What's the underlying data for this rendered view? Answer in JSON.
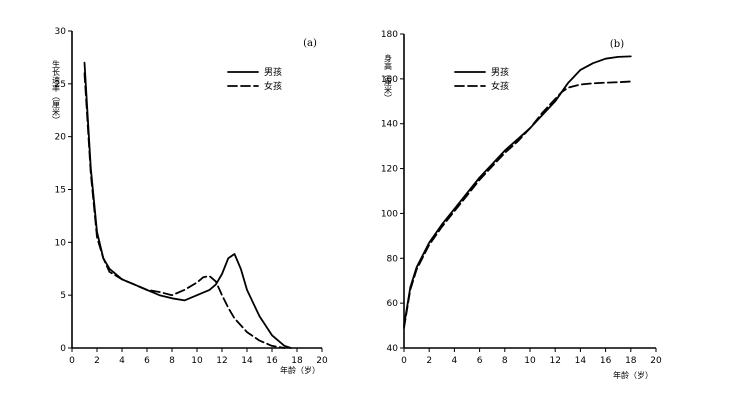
{
  "chart_data": [
    {
      "type": "line",
      "panel_label": "(a)",
      "ylabel": "生长速率（厘米）",
      "xlabel": "年龄（岁）",
      "xlim": [
        0,
        20
      ],
      "ylim": [
        0,
        30
      ],
      "x_ticks": [
        0,
        2,
        4,
        6,
        8,
        10,
        12,
        14,
        16,
        18,
        20
      ],
      "y_ticks": [
        0,
        5,
        10,
        15,
        20,
        25,
        30
      ],
      "grid": false,
      "legend_position": "top-right",
      "series": [
        {
          "name": "男孩",
          "style": "solid",
          "x": [
            1,
            1.5,
            2,
            2.5,
            3,
            4,
            5,
            6,
            7,
            8,
            9,
            10,
            11,
            11.5,
            12,
            12.5,
            13,
            13.5,
            14,
            15,
            16,
            17,
            17.5
          ],
          "y": [
            27,
            17,
            11,
            8.5,
            7.5,
            6.5,
            6,
            5.5,
            5,
            4.7,
            4.5,
            5,
            5.5,
            6,
            7,
            8.5,
            8.9,
            7.5,
            5.5,
            3,
            1.2,
            0.2,
            0
          ]
        },
        {
          "name": "女孩",
          "style": "dashed",
          "x": [
            1,
            1.5,
            2,
            2.5,
            3,
            4,
            5,
            6,
            7,
            8,
            9,
            10,
            10.5,
            11,
            11.5,
            12,
            12.5,
            13,
            14,
            15,
            16,
            17
          ],
          "y": [
            26,
            16.5,
            10.5,
            8.5,
            7.2,
            6.5,
            6,
            5.5,
            5.3,
            5,
            5.5,
            6.2,
            6.7,
            6.8,
            6.3,
            5,
            3.8,
            2.8,
            1.5,
            0.7,
            0.2,
            0
          ]
        }
      ]
    },
    {
      "type": "line",
      "panel_label": "(b)",
      "ylabel": "身高（厘米）",
      "xlabel": "年龄（岁）",
      "xlim": [
        0,
        20
      ],
      "ylim": [
        40,
        180
      ],
      "x_ticks": [
        0,
        2,
        4,
        6,
        8,
        10,
        12,
        14,
        16,
        18,
        20
      ],
      "y_ticks": [
        40,
        60,
        80,
        100,
        120,
        140,
        160,
        180
      ],
      "grid": false,
      "legend_position": "top-right",
      "series": [
        {
          "name": "男孩",
          "style": "solid",
          "x": [
            0,
            0.5,
            1,
            2,
            3,
            4,
            5,
            6,
            7,
            8,
            9,
            10,
            11,
            12,
            12.5,
            13,
            13.5,
            14,
            15,
            16,
            17,
            18
          ],
          "y": [
            50,
            67,
            76,
            87,
            95,
            102,
            109,
            116,
            122,
            128,
            133,
            138,
            144,
            150,
            154,
            158,
            161,
            164,
            167,
            169,
            169.8,
            170
          ]
        },
        {
          "name": "女孩",
          "style": "dashed",
          "x": [
            0,
            0.5,
            1,
            2,
            3,
            4,
            5,
            6,
            7,
            8,
            9,
            10,
            11,
            12,
            12.5,
            13,
            14,
            15,
            16,
            17,
            18
          ],
          "y": [
            49,
            66,
            75,
            86,
            94,
            101,
            108,
            115,
            121,
            127,
            132,
            138,
            145,
            151,
            154,
            156,
            157.5,
            158,
            158.3,
            158.5,
            158.8
          ]
        }
      ]
    }
  ]
}
